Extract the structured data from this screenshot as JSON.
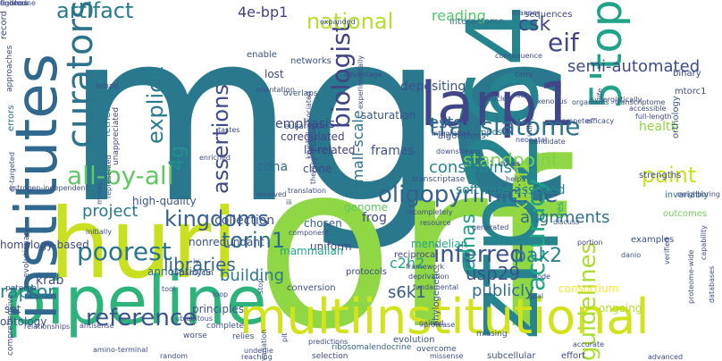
{
  "words": [
    {
      "text": "mgc",
      "color": "#2a788e"
    },
    {
      "text": "orf",
      "color": "#8fd744"
    },
    {
      "text": "zfp264",
      "color": "#25848e"
    },
    {
      "text": "huri",
      "color": "#c8e020"
    },
    {
      "text": "pipeline",
      "color": "#2eb37c"
    },
    {
      "text": "larp1",
      "color": "#3f4788"
    },
    {
      "text": "institutes",
      "color": "#31688e"
    },
    {
      "text": "multiinstitutional",
      "color": "#d2e21b"
    },
    {
      "text": "5'top",
      "color": "#20a386"
    },
    {
      "text": "curators",
      "color": "#2c738e"
    },
    {
      "text": "oligopyrimidine",
      "color": "#34618d"
    },
    {
      "text": "translatome",
      "color": "#2c738e"
    },
    {
      "text": "all-by-all",
      "color": "#5ec962"
    },
    {
      "text": "biologist",
      "color": "#414487"
    },
    {
      "text": "kingdoms",
      "color": "#35608d"
    },
    {
      "text": "torin1",
      "color": "#2d708e"
    },
    {
      "text": "reference",
      "color": "#3b528b"
    },
    {
      "text": "poorest",
      "color": "#2a768e"
    },
    {
      "text": "inferred",
      "color": "#39568c"
    },
    {
      "text": "accuracy",
      "color": "#20a486"
    },
    {
      "text": "guidelines",
      "color": "#addc30"
    },
    {
      "text": "artifact",
      "color": "#297b8e"
    },
    {
      "text": "national",
      "color": "#b5de2b"
    },
    {
      "text": "explicit",
      "color": "#287c8e"
    },
    {
      "text": "assertions",
      "color": "#3e4a89"
    },
    {
      "text": "paint",
      "color": "#cae11f"
    },
    {
      "text": "cdnas",
      "color": "#1fa287"
    },
    {
      "text": "pak2",
      "color": "#25858e"
    },
    {
      "text": "expert",
      "color": "#a2da37"
    },
    {
      "text": "usp29",
      "color": "#3b528b"
    },
    {
      "text": "s6k1",
      "color": "#38598c"
    },
    {
      "text": "libraries",
      "color": "#32658e"
    },
    {
      "text": "raptor",
      "color": "#26828e"
    },
    {
      "text": "eif",
      "color": "#414487"
    },
    {
      "text": "csk",
      "color": "#3e4989"
    },
    {
      "text": "4g",
      "color": "#21918c"
    },
    {
      "text": "standpoint",
      "color": "#7ad151"
    },
    {
      "text": "semi-automated",
      "color": "#3e4c8a"
    },
    {
      "text": "project",
      "color": "#29798e"
    },
    {
      "text": "alignments",
      "color": "#2e6f8e"
    },
    {
      "text": "publicly",
      "color": "#2e6e8e"
    },
    {
      "text": "constrains",
      "color": "#24868e"
    },
    {
      "text": "ests",
      "color": "#34618d"
    },
    {
      "text": "frames",
      "color": "#3b528b"
    },
    {
      "text": "cdna",
      "color": "#31688e"
    },
    {
      "text": "collection",
      "color": "#39568c"
    },
    {
      "text": "software-assisted",
      "color": "#23898e"
    },
    {
      "text": "c2h2",
      "color": "#21a685"
    },
    {
      "text": "health",
      "color": "#90d743"
    },
    {
      "text": "reading",
      "color": "#54c568"
    },
    {
      "text": "depositing",
      "color": "#3b528b"
    },
    {
      "text": "saturation",
      "color": "#3b528b"
    },
    {
      "text": "coregulated",
      "color": "#414487"
    },
    {
      "text": "building",
      "color": "#2a788e"
    },
    {
      "text": "4e-bp1",
      "color": "#424086"
    },
    {
      "text": "small-scale",
      "color": "#2d708e"
    },
    {
      "text": "emphasis",
      "color": "#3f4788"
    },
    {
      "text": "annotations",
      "color": "#2f6c8e"
    },
    {
      "text": "krab",
      "color": "#3e4c8a"
    },
    {
      "text": "principles",
      "color": "#3b528b"
    },
    {
      "text": "genome",
      "color": "#5ec962"
    },
    {
      "text": "frog",
      "color": "#3f4788"
    },
    {
      "text": "chosen",
      "color": "#33638d"
    },
    {
      "text": "uniform",
      "color": "#3e4989"
    },
    {
      "text": "mendelian",
      "color": "#22a785"
    },
    {
      "text": "consortium",
      "color": "#fde725"
    },
    {
      "text": "ongoing",
      "color": "#b5de2b"
    },
    {
      "text": "la-related",
      "color": "#453781"
    },
    {
      "text": "clone",
      "color": "#3f4788"
    },
    {
      "text": "mammalian",
      "color": "#22a884"
    },
    {
      "text": "homology-based",
      "color": "#3e4a89"
    },
    {
      "text": "ontology",
      "color": "#3b528b"
    },
    {
      "text": "high-quality",
      "color": "#38588c"
    },
    {
      "text": "nonredundant",
      "color": "#3b528b"
    },
    {
      "text": "lost",
      "color": "#3f4788"
    },
    {
      "text": "networks",
      "color": "#3b528b"
    },
    {
      "text": "compose",
      "color": "#2e6e8e"
    },
    {
      "text": "algorithms",
      "color": "#3b528b"
    },
    {
      "text": "interactome",
      "color": "#31688e"
    },
    {
      "text": "record",
      "color": "#3e4989"
    },
    {
      "text": "errors",
      "color": "#2e6e8e"
    },
    {
      "text": "contexts",
      "color": "#2a768e"
    },
    {
      "text": "retrieving",
      "color": "#2a778e"
    },
    {
      "text": "enable",
      "color": "#3b528b"
    },
    {
      "text": "tres",
      "color": "#1fa088"
    },
    {
      "text": "strengths",
      "color": "#3e4c8a"
    },
    {
      "text": "rapamycin",
      "color": "#3e4a89"
    },
    {
      "text": "overlaps",
      "color": "#3b528b"
    },
    {
      "text": "eukaryotic",
      "color": "#3b528b"
    },
    {
      "text": "orthology",
      "color": "#38598c"
    },
    {
      "text": "binary",
      "color": "#3e4c8a"
    },
    {
      "text": "mtorc1",
      "color": "#3e4c8a"
    },
    {
      "text": "sequences",
      "color": "#414487"
    },
    {
      "text": "invariably",
      "color": "#2d708e"
    },
    {
      "text": "outcomes",
      "color": "#70cf57"
    },
    {
      "text": "reciprocal",
      "color": "#414487"
    },
    {
      "text": "protocols",
      "color": "#3e4989"
    },
    {
      "text": "conversion",
      "color": "#3b528b"
    },
    {
      "text": "phylogenetic",
      "color": "#38598c"
    },
    {
      "text": "examples",
      "color": "#3b528b"
    },
    {
      "text": "evolution",
      "color": "#3b528b"
    },
    {
      "text": "subcellular",
      "color": "#3e4c8a"
    },
    {
      "text": "effort",
      "color": "#3e4a89"
    },
    {
      "text": "ribosomalendocrine",
      "color": "#34618d"
    },
    {
      "text": "selection",
      "color": "#3e4a89"
    },
    {
      "text": "overcome",
      "color": "#3b528b"
    },
    {
      "text": "transcriptase",
      "color": "#3b528b"
    },
    {
      "text": "broad",
      "color": "#3e4c8a"
    },
    {
      "text": "unappreciated",
      "color": "#3f4788"
    },
    {
      "text": "approaches",
      "color": "#3e4c8a"
    },
    {
      "text": "evolutionary",
      "color": "#3e4c8a"
    },
    {
      "text": "comprehensive",
      "color": "#3e4c8a"
    },
    {
      "text": "paternal",
      "color": "#3b528b"
    },
    {
      "text": "set",
      "color": "#3b528b"
    },
    {
      "text": "complete",
      "color": "#3b528b"
    },
    {
      "text": "missing",
      "color": "#3b528b"
    },
    {
      "text": "worse",
      "color": "#3e4c8a"
    },
    {
      "text": "relies",
      "color": "#3e4c8a"
    },
    {
      "text": "underlie",
      "color": "#3e4c8a"
    },
    {
      "text": "predictions",
      "color": "#3e4c8a"
    },
    {
      "text": "framework",
      "color": "#3e4c8a"
    },
    {
      "text": "deprivation",
      "color": "#3e4c8a"
    },
    {
      "text": "fundamental",
      "color": "#3e4c8a"
    },
    {
      "text": "resource",
      "color": "#3e4c8a"
    },
    {
      "text": "generated",
      "color": "#3e4c8a"
    },
    {
      "text": "discuss",
      "color": "#3b528b"
    },
    {
      "text": "portion",
      "color": "#3e4c8a"
    },
    {
      "text": "danio",
      "color": "#3b528b"
    },
    {
      "text": "accurate",
      "color": "#3e4c8a"
    },
    {
      "text": "drives",
      "color": "#3e4c8a"
    },
    {
      "text": "helps",
      "color": "#3e4c8a"
    },
    {
      "text": "integration",
      "color": "#3e4c8a"
    },
    {
      "text": "downstream",
      "color": "#3e4c8a"
    },
    {
      "text": "utility",
      "color": "#3e4c8a"
    },
    {
      "text": "candidate",
      "color": "#3e4c8a"
    },
    {
      "text": "competes",
      "color": "#3e4c8a"
    },
    {
      "text": "efficacy",
      "color": "#3e4c8a"
    },
    {
      "text": "neonatal",
      "color": "#3e4c8a"
    },
    {
      "text": "xenopus",
      "color": "#3e4c8a"
    },
    {
      "text": "organisms",
      "color": "#3e4c8a"
    },
    {
      "text": "manner",
      "color": "#3e4c8a"
    },
    {
      "text": "consequence",
      "color": "#3e4c8a"
    },
    {
      "text": "advantage",
      "color": "#3e4c8a"
    },
    {
      "text": "orientation",
      "color": "#3e4c8a"
    },
    {
      "text": "expanded",
      "color": "#3e4c8a"
    },
    {
      "text": "transcriptome",
      "color": "#3e4c8a"
    },
    {
      "text": "accessible",
      "color": "#3e4c8a"
    },
    {
      "text": "full-length",
      "color": "#3e4c8a"
    },
    {
      "text": "synergistically",
      "color": "#3e4c8a"
    },
    {
      "text": "neighboring",
      "color": "#3e4c8a"
    },
    {
      "text": "capability",
      "color": "#3e4c8a"
    },
    {
      "text": "databases",
      "color": "#3e4c8a"
    },
    {
      "text": "proteome-wide",
      "color": "#3e4c8a"
    },
    {
      "text": "verified",
      "color": "#3e4c8a"
    },
    {
      "text": "advanced",
      "color": "#3e4c8a"
    },
    {
      "text": "missense",
      "color": "#3e4c8a"
    },
    {
      "text": "gained",
      "color": "#3e4c8a"
    },
    {
      "text": "protease",
      "color": "#3e4c8a"
    },
    {
      "text": "antisense",
      "color": "#3e4c8a"
    },
    {
      "text": "ubiquitous",
      "color": "#3e4c8a"
    },
    {
      "text": "initially",
      "color": "#3e4c8a"
    },
    {
      "text": "incompletely",
      "color": "#3e4c8a"
    },
    {
      "text": "experimentally",
      "color": "#3e4c8a"
    },
    {
      "text": "therapy-resistant",
      "color": "#3e4c8a"
    },
    {
      "text": "kruppel-associated",
      "color": "#3e4c8a"
    },
    {
      "text": "mrnas",
      "color": "#3e4c8a"
    },
    {
      "text": "represented",
      "color": "#3e4c8a"
    },
    {
      "text": "er-targeted",
      "color": "#3e4c8a"
    },
    {
      "text": "estrogen-independent",
      "color": "#3e4c8a"
    },
    {
      "text": "relationships",
      "color": "#3e4c8a"
    },
    {
      "text": "amino-terminal",
      "color": "#3e4c8a"
    },
    {
      "text": "random",
      "color": "#3e4c8a"
    },
    {
      "text": "reaching",
      "color": "#3e4c8a"
    },
    {
      "text": "article",
      "color": "#3e4c8a"
    },
    {
      "text": "carry",
      "color": "#3e4c8a"
    },
    {
      "text": "s6",
      "color": "#3e4c8a"
    },
    {
      "text": "life",
      "color": "#3e4c8a"
    },
    {
      "text": "iii",
      "color": "#3e4c8a"
    },
    {
      "text": "iv",
      "color": "#3e4c8a"
    },
    {
      "text": "tool",
      "color": "#3e4c8a"
    },
    {
      "text": "loop",
      "color": "#3e4c8a"
    },
    {
      "text": "node",
      "color": "#3e4c8a"
    },
    {
      "text": "goal",
      "color": "#3e4c8a"
    },
    {
      "text": "pit",
      "color": "#3e4c8a"
    },
    {
      "text": "stop",
      "color": "#3e4c8a"
    },
    {
      "text": "variation",
      "color": "#3e4c8a"
    },
    {
      "text": "enriched",
      "color": "#3e4c8a"
    },
    {
      "text": "translation",
      "color": "#3e4c8a"
    },
    {
      "text": "component",
      "color": "#3e4c8a"
    },
    {
      "text": "involved",
      "color": "#3e4c8a"
    },
    {
      "text": "tastes",
      "color": "#3e4c8a"
    },
    {
      "text": "endocrine",
      "color": "#3e4c8a"
    },
    {
      "text": "rigorous",
      "color": "#3e4c8a"
    },
    {
      "text": "finishes",
      "color": "#3e4c8a"
    }
  ]
}
